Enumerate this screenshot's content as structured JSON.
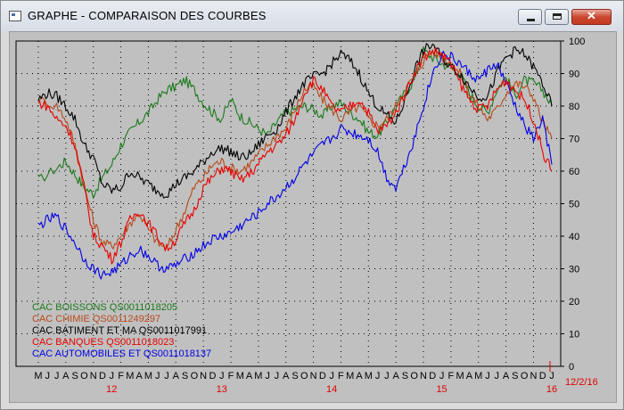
{
  "window": {
    "title": "GRAPHE - COMPARAISON DES COURBES",
    "close_glyph": "✕"
  },
  "chart_data": {
    "type": "line",
    "title": "GRAPHE - COMPARAISON DES COURBES",
    "ylim": [
      0,
      100
    ],
    "y_ticks": [
      0,
      10,
      20,
      30,
      40,
      50,
      60,
      70,
      80,
      90,
      100
    ],
    "x_range": [
      "2011-05",
      "2016-02-12"
    ],
    "month_ticks": [
      "M",
      "J",
      "J",
      "A",
      "S",
      "O",
      "N",
      "D",
      "J",
      "F",
      "M",
      "A",
      "M",
      "J",
      "J",
      "A",
      "S",
      "O",
      "N",
      "D",
      "J",
      "F",
      "M",
      "A",
      "M",
      "J",
      "J",
      "A",
      "S",
      "O",
      "N",
      "D",
      "J",
      "F",
      "M",
      "A",
      "M",
      "J",
      "J",
      "A",
      "S",
      "O",
      "N",
      "D",
      "J",
      "F",
      "M",
      "A",
      "M",
      "J",
      "J",
      "A",
      "S",
      "O",
      "N",
      "D",
      "J"
    ],
    "year_labels": [
      "12",
      "13",
      "14",
      "15",
      "16"
    ],
    "end_date_label": "12/2/16",
    "grid": true,
    "legend_position": "bottom-left",
    "series": [
      {
        "name": "CAC BOISSONS        QS0011018205",
        "color": "#1a7a1a",
        "points": [
          [
            0,
            57
          ],
          [
            2,
            61
          ],
          [
            3,
            63
          ],
          [
            4,
            59
          ],
          [
            5,
            55
          ],
          [
            6,
            53
          ],
          [
            7,
            58
          ],
          [
            8,
            62
          ],
          [
            9,
            68
          ],
          [
            10,
            72
          ],
          [
            11,
            75
          ],
          [
            12,
            78
          ],
          [
            13,
            82
          ],
          [
            14,
            85
          ],
          [
            15,
            86
          ],
          [
            16,
            88
          ],
          [
            17,
            85
          ],
          [
            18,
            81
          ],
          [
            19,
            78
          ],
          [
            20,
            76
          ],
          [
            21,
            82
          ],
          [
            22,
            77
          ],
          [
            23,
            75
          ],
          [
            24,
            73
          ],
          [
            25,
            71
          ],
          [
            26,
            75
          ],
          [
            27,
            78
          ],
          [
            28,
            79
          ],
          [
            29,
            80
          ],
          [
            30,
            79
          ],
          [
            31,
            77
          ],
          [
            32,
            80
          ],
          [
            33,
            81
          ],
          [
            34,
            78
          ],
          [
            35,
            76
          ],
          [
            36,
            72
          ],
          [
            37,
            71
          ],
          [
            38,
            75
          ],
          [
            39,
            80
          ],
          [
            40,
            84
          ],
          [
            41,
            88
          ],
          [
            42,
            97
          ],
          [
            43,
            95
          ],
          [
            44,
            93
          ],
          [
            45,
            92
          ],
          [
            46,
            90
          ],
          [
            47,
            84
          ],
          [
            48,
            80
          ],
          [
            49,
            78
          ],
          [
            50,
            85
          ],
          [
            51,
            89
          ],
          [
            52,
            83
          ],
          [
            53,
            88
          ],
          [
            54,
            87
          ],
          [
            55,
            85
          ],
          [
            56,
            80
          ]
        ]
      },
      {
        "name": "CAC CHIMIE           QS0011249297",
        "color": "#b84a1a",
        "points": [
          [
            0,
            82
          ],
          [
            2,
            80
          ],
          [
            3,
            76
          ],
          [
            4,
            68
          ],
          [
            5,
            55
          ],
          [
            6,
            45
          ],
          [
            7,
            38
          ],
          [
            8,
            37
          ],
          [
            9,
            40
          ],
          [
            10,
            44
          ],
          [
            11,
            47
          ],
          [
            12,
            42
          ],
          [
            13,
            38
          ],
          [
            14,
            36
          ],
          [
            15,
            42
          ],
          [
            16,
            48
          ],
          [
            17,
            55
          ],
          [
            18,
            58
          ],
          [
            19,
            62
          ],
          [
            20,
            63
          ],
          [
            21,
            61
          ],
          [
            22,
            60
          ],
          [
            23,
            62
          ],
          [
            24,
            65
          ],
          [
            25,
            68
          ],
          [
            26,
            71
          ],
          [
            27,
            73
          ],
          [
            28,
            79
          ],
          [
            29,
            85
          ],
          [
            30,
            86
          ],
          [
            31,
            82
          ],
          [
            32,
            79
          ],
          [
            33,
            76
          ],
          [
            34,
            78
          ],
          [
            35,
            80
          ],
          [
            36,
            76
          ],
          [
            37,
            74
          ],
          [
            38,
            76
          ],
          [
            39,
            80
          ],
          [
            40,
            85
          ],
          [
            41,
            89
          ],
          [
            42,
            94
          ],
          [
            43,
            97
          ],
          [
            44,
            95
          ],
          [
            45,
            93
          ],
          [
            46,
            90
          ],
          [
            47,
            84
          ],
          [
            48,
            80
          ],
          [
            49,
            76
          ],
          [
            50,
            79
          ],
          [
            51,
            84
          ],
          [
            52,
            87
          ],
          [
            53,
            86
          ],
          [
            54,
            83
          ],
          [
            55,
            75
          ],
          [
            56,
            70
          ]
        ]
      },
      {
        "name": "CAC BATIMENT ET MA QS0011017991",
        "color": "#000000",
        "points": [
          [
            0,
            82
          ],
          [
            1,
            84
          ],
          [
            2,
            83
          ],
          [
            3,
            80
          ],
          [
            4,
            76
          ],
          [
            5,
            68
          ],
          [
            6,
            64
          ],
          [
            7,
            56
          ],
          [
            8,
            54
          ],
          [
            9,
            55
          ],
          [
            10,
            60
          ],
          [
            11,
            58
          ],
          [
            12,
            56
          ],
          [
            13,
            54
          ],
          [
            14,
            53
          ],
          [
            15,
            56
          ],
          [
            16,
            58
          ],
          [
            17,
            60
          ],
          [
            18,
            63
          ],
          [
            19,
            66
          ],
          [
            20,
            67
          ],
          [
            21,
            66
          ],
          [
            22,
            64
          ],
          [
            23,
            65
          ],
          [
            24,
            68
          ],
          [
            25,
            71
          ],
          [
            26,
            73
          ],
          [
            27,
            78
          ],
          [
            28,
            83
          ],
          [
            29,
            87
          ],
          [
            30,
            89
          ],
          [
            31,
            90
          ],
          [
            32,
            93
          ],
          [
            33,
            96
          ],
          [
            34,
            94
          ],
          [
            35,
            90
          ],
          [
            36,
            84
          ],
          [
            37,
            80
          ],
          [
            38,
            77
          ],
          [
            39,
            75
          ],
          [
            40,
            82
          ],
          [
            41,
            91
          ],
          [
            42,
            97
          ],
          [
            43,
            99
          ],
          [
            44,
            95
          ],
          [
            45,
            92
          ],
          [
            46,
            90
          ],
          [
            47,
            86
          ],
          [
            48,
            83
          ],
          [
            49,
            83
          ],
          [
            50,
            90
          ],
          [
            51,
            95
          ],
          [
            52,
            97
          ],
          [
            53,
            96
          ],
          [
            54,
            92
          ],
          [
            55,
            87
          ],
          [
            56,
            80
          ]
        ]
      },
      {
        "name": "CAC BANQUES          QS0011018023",
        "color": "#e80000",
        "points": [
          [
            0,
            81
          ],
          [
            1,
            80
          ],
          [
            2,
            76
          ],
          [
            3,
            74
          ],
          [
            4,
            68
          ],
          [
            5,
            55
          ],
          [
            6,
            40
          ],
          [
            7,
            37
          ],
          [
            8,
            33
          ],
          [
            9,
            38
          ],
          [
            10,
            45
          ],
          [
            11,
            48
          ],
          [
            12,
            44
          ],
          [
            13,
            40
          ],
          [
            14,
            36
          ],
          [
            15,
            39
          ],
          [
            16,
            44
          ],
          [
            17,
            48
          ],
          [
            18,
            55
          ],
          [
            19,
            58
          ],
          [
            20,
            61
          ],
          [
            21,
            60
          ],
          [
            22,
            57
          ],
          [
            23,
            59
          ],
          [
            24,
            62
          ],
          [
            25,
            66
          ],
          [
            26,
            68
          ],
          [
            27,
            71
          ],
          [
            28,
            76
          ],
          [
            29,
            84
          ],
          [
            30,
            88
          ],
          [
            31,
            85
          ],
          [
            32,
            80
          ],
          [
            33,
            78
          ],
          [
            34,
            80
          ],
          [
            35,
            82
          ],
          [
            36,
            78
          ],
          [
            37,
            72
          ],
          [
            38,
            74
          ],
          [
            39,
            78
          ],
          [
            40,
            84
          ],
          [
            41,
            90
          ],
          [
            42,
            95
          ],
          [
            43,
            97
          ],
          [
            44,
            96
          ],
          [
            45,
            93
          ],
          [
            46,
            87
          ],
          [
            47,
            82
          ],
          [
            48,
            79
          ],
          [
            49,
            80
          ],
          [
            50,
            85
          ],
          [
            51,
            88
          ],
          [
            52,
            85
          ],
          [
            53,
            82
          ],
          [
            54,
            76
          ],
          [
            55,
            66
          ],
          [
            56,
            60
          ]
        ]
      },
      {
        "name": "CAC AUTOMOBILES ET QS0011018137",
        "color": "#0000e8",
        "points": [
          [
            0,
            43
          ],
          [
            1,
            45
          ],
          [
            2,
            46
          ],
          [
            3,
            42
          ],
          [
            4,
            38
          ],
          [
            5,
            33
          ],
          [
            6,
            30
          ],
          [
            7,
            28
          ],
          [
            8,
            29
          ],
          [
            9,
            31
          ],
          [
            10,
            34
          ],
          [
            11,
            36
          ],
          [
            12,
            34
          ],
          [
            13,
            31
          ],
          [
            14,
            30
          ],
          [
            15,
            31
          ],
          [
            16,
            33
          ],
          [
            17,
            35
          ],
          [
            18,
            37
          ],
          [
            19,
            39
          ],
          [
            20,
            40
          ],
          [
            21,
            41
          ],
          [
            22,
            43
          ],
          [
            23,
            45
          ],
          [
            24,
            47
          ],
          [
            25,
            50
          ],
          [
            26,
            52
          ],
          [
            27,
            55
          ],
          [
            28,
            58
          ],
          [
            29,
            62
          ],
          [
            30,
            65
          ],
          [
            31,
            68
          ],
          [
            32,
            70
          ],
          [
            33,
            73
          ],
          [
            34,
            72
          ],
          [
            35,
            71
          ],
          [
            36,
            70
          ],
          [
            37,
            66
          ],
          [
            38,
            58
          ],
          [
            39,
            55
          ],
          [
            40,
            62
          ],
          [
            41,
            70
          ],
          [
            42,
            80
          ],
          [
            43,
            90
          ],
          [
            44,
            96
          ],
          [
            45,
            95
          ],
          [
            46,
            93
          ],
          [
            47,
            90
          ],
          [
            48,
            88
          ],
          [
            49,
            91
          ],
          [
            50,
            93
          ],
          [
            51,
            87
          ],
          [
            52,
            80
          ],
          [
            53,
            74
          ],
          [
            54,
            70
          ],
          [
            55,
            76
          ],
          [
            56,
            62
          ]
        ]
      }
    ]
  }
}
